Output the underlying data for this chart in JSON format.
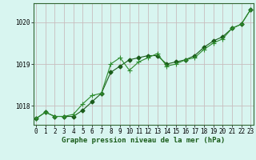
{
  "title": "Graphe pression niveau de la mer (hPa)",
  "bg_color": "#d8f5f0",
  "grid_color": "#c8bebe",
  "line_color1": "#1a5c1a",
  "line_color2": "#2d8b2d",
  "x_ticks": [
    0,
    1,
    2,
    3,
    4,
    5,
    6,
    7,
    8,
    9,
    10,
    11,
    12,
    13,
    14,
    15,
    16,
    17,
    18,
    19,
    20,
    21,
    22,
    23
  ],
  "y_ticks": [
    1018,
    1019,
    1020
  ],
  "ylim": [
    1017.55,
    1020.45
  ],
  "xlim": [
    -0.3,
    23.3
  ],
  "line1_x": [
    0,
    1,
    2,
    3,
    4,
    5,
    6,
    7,
    8,
    9,
    10,
    11,
    12,
    13,
    14,
    15,
    16,
    17,
    18,
    19,
    20,
    21,
    22,
    23
  ],
  "line1_y": [
    1017.7,
    1017.85,
    1017.75,
    1017.75,
    1017.75,
    1017.9,
    1018.1,
    1018.3,
    1018.8,
    1018.95,
    1019.1,
    1019.15,
    1019.2,
    1019.2,
    1019.0,
    1019.05,
    1019.1,
    1019.2,
    1019.4,
    1019.55,
    1019.65,
    1019.85,
    1019.95,
    1020.3
  ],
  "line2_x": [
    0,
    1,
    2,
    3,
    4,
    5,
    6,
    7,
    8,
    9,
    10,
    11,
    12,
    13,
    14,
    15,
    16,
    17,
    18,
    19,
    20,
    21,
    22,
    23
  ],
  "line2_y": [
    1017.7,
    1017.85,
    1017.75,
    1017.75,
    1017.8,
    1018.05,
    1018.25,
    1018.3,
    1019.0,
    1019.15,
    1018.85,
    1019.05,
    1019.15,
    1019.25,
    1018.95,
    1019.0,
    1019.1,
    1019.15,
    1019.35,
    1019.5,
    1019.6,
    1019.85,
    1019.95,
    1020.3
  ],
  "marker_size": 2.5,
  "title_fontsize": 6.5,
  "tick_fontsize": 5.5
}
